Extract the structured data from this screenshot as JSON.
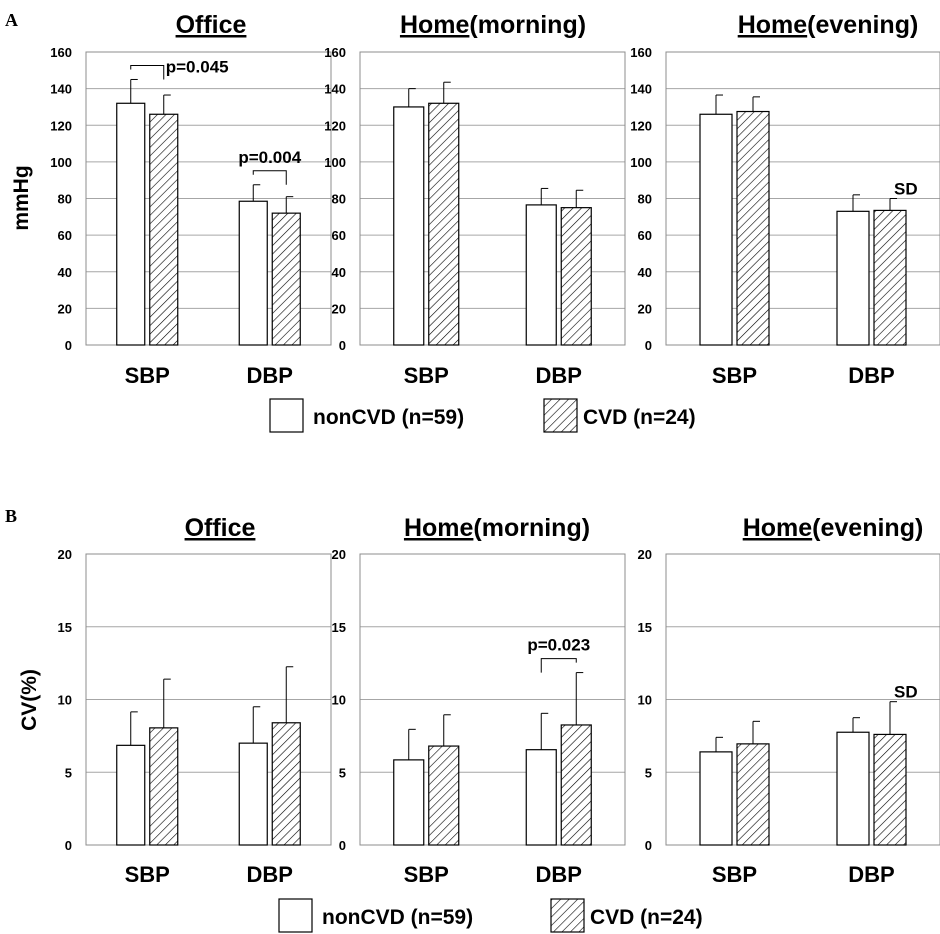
{
  "legend": {
    "noncvd_label": "nonCVD (n=59)",
    "cvd_label": "CVD (n=24)"
  },
  "chart_data": [
    {
      "panel": "A",
      "type": "bar",
      "title_main": "Office",
      "title_suffix": "",
      "ylabel": "mmHg",
      "ylim": [
        0,
        160
      ],
      "yticks": [
        0,
        20,
        40,
        60,
        80,
        100,
        120,
        140,
        160
      ],
      "categories": [
        "SBP",
        "DBP"
      ],
      "series": [
        {
          "name": "nonCVD (n=59)",
          "pattern": "none",
          "values": [
            132,
            78.5
          ],
          "err": [
            13,
            9
          ]
        },
        {
          "name": "CVD (n=24)",
          "pattern": "hatch",
          "values": [
            126,
            72
          ],
          "err": [
            10.5,
            9
          ]
        }
      ],
      "brackets": [
        {
          "category": 0,
          "label": "p=0.045"
        },
        {
          "category": 1,
          "label": "p=0.004"
        }
      ],
      "sd_label": ""
    },
    {
      "panel": "",
      "type": "bar",
      "title_main": "Home",
      "title_suffix": "(morning)",
      "ylabel": "",
      "ylim": [
        0,
        160
      ],
      "yticks": [
        0,
        20,
        40,
        60,
        80,
        100,
        120,
        140,
        160
      ],
      "categories": [
        "SBP",
        "DBP"
      ],
      "series": [
        {
          "name": "nonCVD (n=59)",
          "pattern": "none",
          "values": [
            130,
            76.5
          ],
          "err": [
            10,
            9
          ]
        },
        {
          "name": "CVD (n=24)",
          "pattern": "hatch",
          "values": [
            132,
            75
          ],
          "err": [
            11.5,
            9.5
          ]
        }
      ],
      "brackets": [],
      "sd_label": ""
    },
    {
      "panel": "",
      "type": "bar",
      "title_main": "Home",
      "title_suffix": "(evening)",
      "ylabel": "",
      "ylim": [
        0,
        160
      ],
      "yticks": [
        0,
        20,
        40,
        60,
        80,
        100,
        120,
        140,
        160
      ],
      "categories": [
        "SBP",
        "DBP"
      ],
      "series": [
        {
          "name": "nonCVD (n=59)",
          "pattern": "none",
          "values": [
            126,
            73
          ],
          "err": [
            10.5,
            9
          ]
        },
        {
          "name": "CVD (n=24)",
          "pattern": "hatch",
          "values": [
            127.5,
            73.5
          ],
          "err": [
            8,
            6.5
          ]
        }
      ],
      "brackets": [],
      "sd_label": "SD"
    },
    {
      "panel": "B",
      "type": "bar",
      "title_main": "Office",
      "title_suffix": "",
      "ylabel": "CV(%)",
      "ylim": [
        0,
        20
      ],
      "yticks": [
        0,
        5,
        10,
        15,
        20
      ],
      "categories": [
        "SBP",
        "DBP"
      ],
      "series": [
        {
          "name": "nonCVD (n=59)",
          "pattern": "none",
          "values": [
            6.85,
            7.0
          ],
          "err": [
            2.3,
            2.5
          ]
        },
        {
          "name": "CVD (n=24)",
          "pattern": "hatch",
          "values": [
            8.05,
            8.4
          ],
          "err": [
            3.35,
            3.85
          ]
        }
      ],
      "brackets": [],
      "sd_label": ""
    },
    {
      "panel": "",
      "type": "bar",
      "title_main": "Home",
      "title_suffix": "(morning)",
      "ylabel": "",
      "ylim": [
        0,
        20
      ],
      "yticks": [
        0,
        5,
        10,
        15,
        20
      ],
      "categories": [
        "SBP",
        "DBP"
      ],
      "series": [
        {
          "name": "nonCVD (n=59)",
          "pattern": "none",
          "values": [
            5.85,
            6.55
          ],
          "err": [
            2.1,
            2.5
          ]
        },
        {
          "name": "CVD (n=24)",
          "pattern": "hatch",
          "values": [
            6.8,
            8.25
          ],
          "err": [
            2.15,
            3.6
          ]
        }
      ],
      "brackets": [
        {
          "category": 1,
          "label": "p=0.023"
        }
      ],
      "sd_label": ""
    },
    {
      "panel": "",
      "type": "bar",
      "title_main": "Home",
      "title_suffix": "(evening)",
      "ylabel": "",
      "ylim": [
        0,
        20
      ],
      "yticks": [
        0,
        5,
        10,
        15,
        20
      ],
      "categories": [
        "SBP",
        "DBP"
      ],
      "series": [
        {
          "name": "nonCVD (n=59)",
          "pattern": "none",
          "values": [
            6.4,
            7.75
          ],
          "err": [
            1.0,
            1.0
          ]
        },
        {
          "name": "CVD (n=24)",
          "pattern": "hatch",
          "values": [
            6.95,
            7.6
          ],
          "err": [
            1.55,
            2.25
          ]
        }
      ],
      "brackets": [],
      "sd_label": "SD"
    }
  ]
}
